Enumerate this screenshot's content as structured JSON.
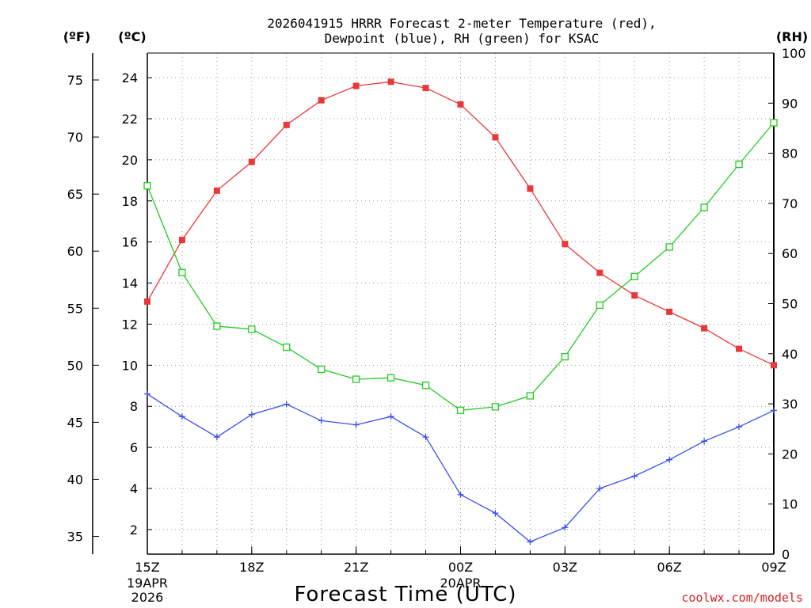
{
  "chart_data": {
    "type": "line",
    "title_lines": [
      "2026041915 HRRR Forecast 2-meter Temperature (red),",
      "Dewpoint (blue), RH (green) for KSAC"
    ],
    "xlabel": "Forecast Time (UTC)",
    "credit": "coolwx.com/models",
    "x_ticks": [
      {
        "i": 0,
        "label": "15Z",
        "sub": [
          "19APR",
          "2026"
        ]
      },
      {
        "i": 3,
        "label": "18Z",
        "sub": []
      },
      {
        "i": 6,
        "label": "21Z",
        "sub": []
      },
      {
        "i": 9,
        "label": "00Z",
        "sub": [
          "20APR"
        ]
      },
      {
        "i": 12,
        "label": "03Z",
        "sub": []
      },
      {
        "i": 15,
        "label": "06Z",
        "sub": []
      },
      {
        "i": 18,
        "label": "09Z",
        "sub": []
      }
    ],
    "axes": {
      "celsius": {
        "unit_label": "(ºC)",
        "range": [
          0.8,
          25.2
        ],
        "ticks": [
          2,
          4,
          6,
          8,
          10,
          12,
          14,
          16,
          18,
          20,
          22,
          24
        ]
      },
      "fahrenheit": {
        "unit_label": "(ºF)",
        "ticks": [
          35,
          40,
          45,
          50,
          55,
          60,
          65,
          70,
          75
        ]
      },
      "rh": {
        "unit_label": "(RH)",
        "range": [
          0,
          100
        ],
        "ticks": [
          0,
          10,
          20,
          30,
          40,
          50,
          60,
          70,
          80,
          90,
          100
        ]
      }
    },
    "grid": true,
    "series": [
      {
        "key": "temperature",
        "axis": "celsius",
        "color": "#e8383a",
        "marker": "filled-square",
        "values": [
          13.1,
          16.1,
          18.5,
          19.9,
          21.7,
          22.9,
          23.6,
          23.8,
          23.5,
          22.7,
          21.1,
          18.6,
          15.9,
          14.5,
          13.4,
          12.6,
          11.8,
          10.8,
          10.0
        ]
      },
      {
        "key": "dewpoint",
        "axis": "celsius",
        "color": "#3a4ee8",
        "marker": "plus",
        "values": [
          8.6,
          7.5,
          6.5,
          7.6,
          8.1,
          7.3,
          7.1,
          7.5,
          6.5,
          3.7,
          2.8,
          1.4,
          2.1,
          4.0,
          4.6,
          5.4,
          6.3,
          7.0,
          7.8
        ]
      },
      {
        "key": "rh",
        "axis": "rh",
        "color": "#22cc22",
        "marker": "open-square",
        "values": [
          73.5,
          56.2,
          45.5,
          44.9,
          41.3,
          36.9,
          34.9,
          35.2,
          33.7,
          28.7,
          29.4,
          31.6,
          39.4,
          49.7,
          55.4,
          61.3,
          69.2,
          77.8,
          86.1
        ]
      }
    ]
  }
}
